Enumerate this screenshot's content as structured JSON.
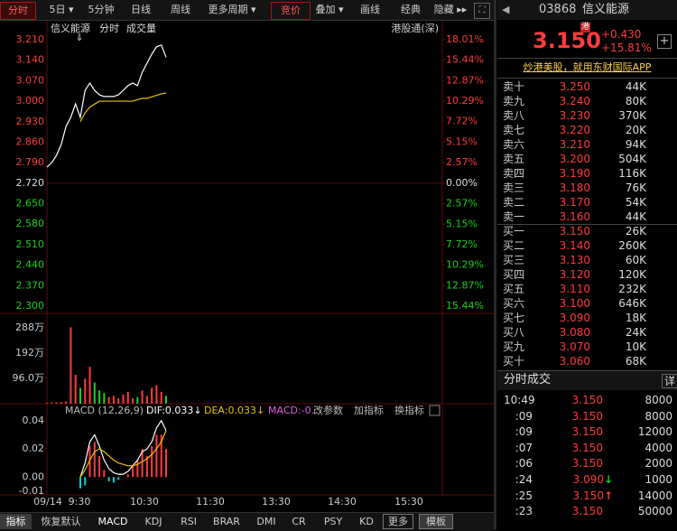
{
  "toolbar": {
    "left_tabs": [
      "分时",
      "5日 ▾",
      "5分钟",
      "日线",
      "周线",
      "更多周期 ▾"
    ],
    "right_tabs": [
      "竞价",
      "叠加 ▾",
      "画线",
      "经典",
      "隐藏 ▸▸"
    ]
  },
  "chart": {
    "header": [
      "信义能源",
      "分时",
      "成交量"
    ],
    "connect": "港股通(深)",
    "price": {
      "ylim": [
        2.3,
        3.21
      ],
      "yticks": [
        {
          "value": 3.21,
          "label": "3.210"
        },
        {
          "value": 3.14,
          "label": "3.140"
        },
        {
          "value": 3.07,
          "label": "3.070"
        },
        {
          "value": 3,
          "label": "3.000"
        },
        {
          "value": 2.93,
          "label": "2.930"
        },
        {
          "value": 2.86,
          "label": "2.860"
        },
        {
          "value": 2.79,
          "label": "2.790"
        },
        {
          "value": 2.72,
          "label": "2.720"
        },
        {
          "value": 2.65,
          "label": "2.650"
        },
        {
          "value": 2.58,
          "label": "2.580"
        },
        {
          "value": 2.51,
          "label": "2.510"
        },
        {
          "value": 2.44,
          "label": "2.440"
        },
        {
          "value": 2.37,
          "label": "2.370"
        },
        {
          "value": 2.3,
          "label": "2.300"
        }
      ],
      "y2lim": [
        -15.44,
        18.01
      ],
      "y2ticks": [
        {
          "value": 18.01,
          "label": "18.01%"
        },
        {
          "value": 15.44,
          "label": "15.44%"
        },
        {
          "value": 12.87,
          "label": "12.87%"
        },
        {
          "value": 10.29,
          "label": "10.29%"
        },
        {
          "value": 7.72,
          "label": "7.72%"
        },
        {
          "value": 5.15,
          "label": "5.15%"
        },
        {
          "value": 2.57,
          "label": "2.57%"
        },
        {
          "value": 0,
          "label": "0.00%"
        },
        {
          "value": -2.57,
          "label": "2.57%"
        },
        {
          "value": -5.15,
          "label": "5.15%"
        },
        {
          "value": -7.72,
          "label": "7.72%"
        },
        {
          "value": -10.29,
          "label": "10.29%"
        },
        {
          "value": -12.87,
          "label": "12.87%"
        },
        {
          "value": -15.44,
          "label": "15.44%"
        }
      ],
      "values": [
        2.775,
        2.79,
        2.815,
        2.852,
        2.914,
        2.945,
        2.991,
        2.945,
        3.037,
        3.062,
        3.037,
        3.022,
        3.016,
        3.016,
        3.016,
        3.022,
        3.037,
        3.053,
        3.062,
        3.053,
        3.099,
        3.13,
        3.161,
        3.186,
        3.192,
        3.15
      ],
      "avg": [
        null,
        null,
        null,
        null,
        null,
        null,
        null,
        2.93,
        2.96,
        2.98,
        2.99,
        3.0,
        3.0,
        3.0,
        3.0,
        3.0,
        3.0,
        3.0,
        3.0,
        3.005,
        3.01,
        3.01,
        3.015,
        3.02,
        3.025,
        3.028
      ],
      "color": "#ffffff",
      "avg_color": "#e6c300"
    },
    "volume": {
      "ylim": [
        0,
        300
      ],
      "yticks": [
        {
          "value": 288,
          "label": "288万"
        },
        {
          "value": 192,
          "label": "192万"
        },
        {
          "value": 96,
          "label": "96.0万"
        }
      ],
      "values": [
        3,
        4,
        5,
        6,
        8,
        290,
        110,
        60,
        95,
        140,
        80,
        50,
        40,
        25,
        30,
        20,
        35,
        45,
        20,
        25,
        50,
        30,
        60,
        70,
        45,
        30
      ]
    },
    "macd": {
      "header": [
        "MACD (12,26,9)",
        "DIF:0.033↓",
        "DEA:0.033↓",
        "MACD:-0.",
        "改参数",
        "加指标",
        "换指标"
      ],
      "ylim": [
        -0.012,
        0.045
      ],
      "yticks": [
        0.04,
        0.02,
        {
          "value": 0,
          "label": "0.00"
        },
        -0.01
      ],
      "dif": [
        null,
        null,
        null,
        null,
        null,
        null,
        null,
        0.0,
        0.01,
        0.025,
        0.03,
        0.022,
        0.012,
        0.006,
        0.003,
        0.002,
        0.002,
        0.004,
        0.008,
        0.012,
        0.018,
        0.02,
        0.025,
        0.035,
        0.04,
        0.033
      ],
      "dea": [
        null,
        null,
        null,
        null,
        null,
        null,
        null,
        0.0,
        0.005,
        0.012,
        0.018,
        0.02,
        0.018,
        0.015,
        0.012,
        0.01,
        0.009,
        0.008,
        0.008,
        0.009,
        0.011,
        0.013,
        0.016,
        0.02,
        0.025,
        0.033
      ],
      "hist": [
        0,
        0,
        0,
        0,
        0,
        0,
        0,
        -0.008,
        -0.006,
        0.022,
        0.025,
        0.015,
        0.005,
        -0.003,
        -0.004,
        -0.002,
        0,
        0.002,
        0.008,
        0.012,
        0.02,
        0.015,
        0.022,
        0.03,
        0.03,
        0.02
      ]
    },
    "xticks": [
      "09/14",
      "9:30",
      "10:30",
      "11:30",
      "13:30",
      "14:30",
      "15:30"
    ]
  },
  "bottom_tabs": [
    "指标",
    "恢复默认",
    "MACD",
    "KDJ",
    "RSI",
    "BRAR",
    "DMI",
    "CR",
    "PSY",
    "KD",
    "更多",
    "模板"
  ],
  "quote": {
    "code": "03868",
    "name": "信义能源",
    "price": "3.150",
    "market": "港",
    "change": "+0.430",
    "change_pct": "+15.81%",
    "ad": "炒港美股，就用东财国际APP"
  },
  "order_book": {
    "asks": [
      [
        "卖十",
        "3.250",
        "44K"
      ],
      [
        "卖九",
        "3.240",
        "80K"
      ],
      [
        "卖八",
        "3.230",
        "370K"
      ],
      [
        "卖七",
        "3.220",
        "20K"
      ],
      [
        "卖六",
        "3.210",
        "94K"
      ],
      [
        "卖五",
        "3.200",
        "504K"
      ],
      [
        "卖四",
        "3.190",
        "116K"
      ],
      [
        "卖三",
        "3.180",
        "76K"
      ],
      [
        "卖二",
        "3.170",
        "54K"
      ],
      [
        "卖一",
        "3.160",
        "44K"
      ]
    ],
    "bids": [
      [
        "买一",
        "3.150",
        "26K"
      ],
      [
        "买二",
        "3.140",
        "260K"
      ],
      [
        "买三",
        "3.130",
        "60K"
      ],
      [
        "买四",
        "3.120",
        "120K"
      ],
      [
        "买五",
        "3.110",
        "232K"
      ],
      [
        "买六",
        "3.100",
        "646K"
      ],
      [
        "买七",
        "3.090",
        "18K"
      ],
      [
        "买八",
        "3.080",
        "24K"
      ],
      [
        "买九",
        "3.070",
        "10K"
      ],
      [
        "买十",
        "3.060",
        "68K"
      ]
    ]
  },
  "trades": {
    "title": "分时成交",
    "detail": "详",
    "rows": [
      [
        "10:49",
        "3.150",
        "8000"
      ],
      [
        ":09",
        "3.150",
        "8000"
      ],
      [
        ":09",
        "3.150",
        "12000"
      ],
      [
        ":07",
        "3.150",
        "4000"
      ],
      [
        ":06",
        "3.150",
        "2000"
      ],
      [
        ":24",
        "3.090",
        "1000",
        "↓"
      ],
      [
        ":25",
        "3.150",
        "14000",
        "↑"
      ],
      [
        ":23",
        "3.150",
        "50000"
      ]
    ]
  }
}
